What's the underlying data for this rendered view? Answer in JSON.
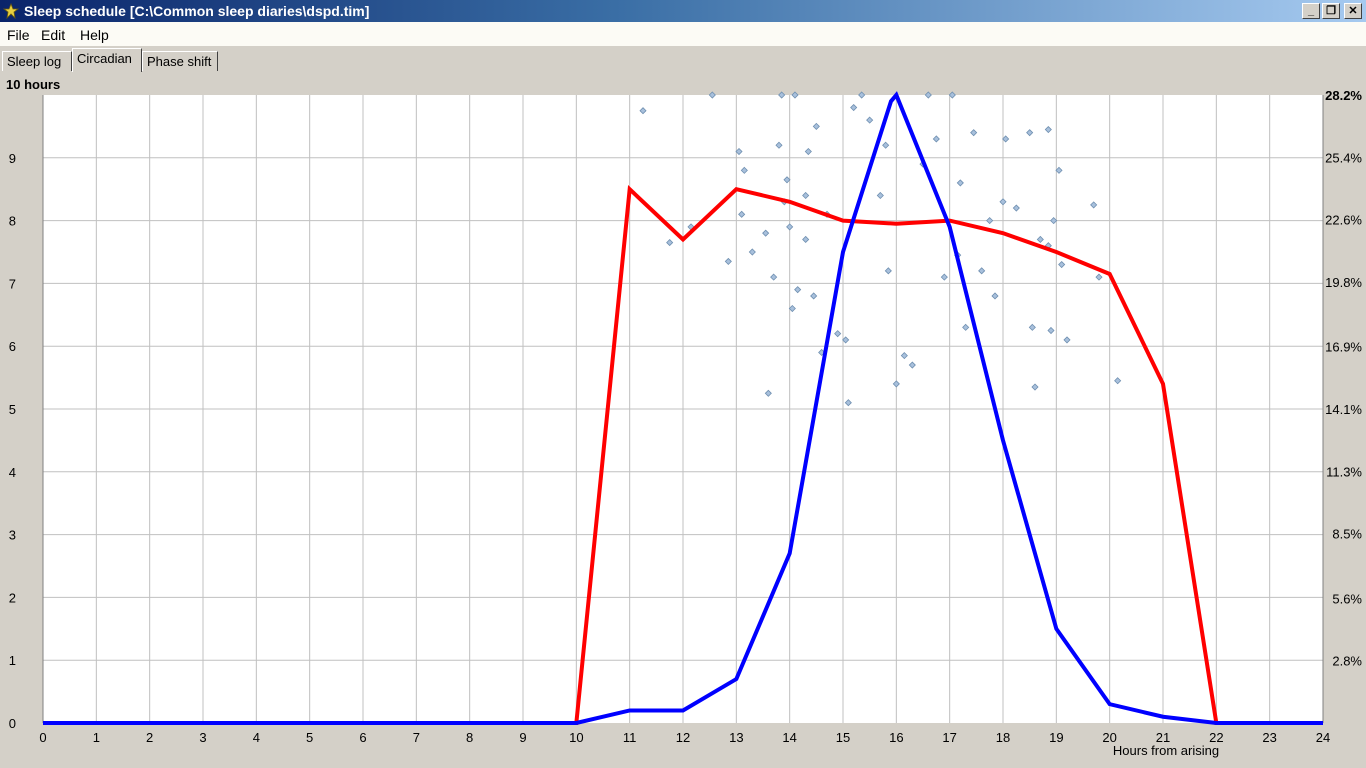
{
  "window": {
    "title": "Sleep schedule [C:\\Common sleep diaries\\dspd.tim]",
    "minimize_symbol": "_",
    "restore_symbol": "❐",
    "close_symbol": "✕"
  },
  "menu": [
    "File",
    "Edit",
    "Help"
  ],
  "tabs": [
    "Sleep log",
    "Circadian",
    "Phase shift"
  ],
  "active_tab": "Circadian",
  "colors": {
    "sleep_length_line": "#ff0000",
    "sleep_onset_distribution_line": "#0000ff",
    "scatter_fill": "#a8c0dc",
    "scatter_stroke": "#6f8fb0",
    "grid": "#c0c0c0"
  },
  "chart_data": {
    "type": "line",
    "title": "10 hours",
    "xlabel": "Hours from arising",
    "xlim": [
      0,
      24
    ],
    "ylim_left": [
      0,
      10
    ],
    "ylim_right_percent": [
      0,
      28.2
    ],
    "x_ticks": [
      "0",
      "1",
      "2",
      "3",
      "4",
      "5",
      "6",
      "7",
      "8",
      "9",
      "10",
      "11",
      "12",
      "13",
      "14",
      "15",
      "16",
      "17",
      "18",
      "19",
      "20",
      "21",
      "22",
      "23",
      "24"
    ],
    "y_ticks_left": [
      "0",
      "1",
      "2",
      "3",
      "4",
      "5",
      "6",
      "7",
      "8",
      "9"
    ],
    "y_ticks_right": [
      "2.8%",
      "5.6%",
      "8.5%",
      "11.3%",
      "14.1%",
      "16.9%",
      "19.8%",
      "22.6%",
      "25.4%",
      "28.2%"
    ],
    "grid": true,
    "series": [
      {
        "color": "red",
        "x": [
          0,
          10,
          11,
          12,
          13,
          14,
          15,
          16,
          17,
          18,
          19,
          20,
          21,
          22,
          24
        ],
        "values": [
          0,
          0,
          8.5,
          7.7,
          8.5,
          8.3,
          8.0,
          7.95,
          8.0,
          7.8,
          7.5,
          7.15,
          5.4,
          0,
          0
        ]
      },
      {
        "color": "blue",
        "x": [
          0,
          10,
          11,
          12,
          13,
          14,
          15,
          15.9,
          16,
          17,
          18,
          19,
          20,
          21,
          22,
          24
        ],
        "values": [
          0,
          0,
          0.2,
          0.2,
          0.7,
          2.7,
          7.5,
          9.9,
          10,
          7.9,
          4.5,
          1.5,
          0.3,
          0.1,
          0,
          0
        ]
      }
    ],
    "scatter_points": [
      [
        11.25,
        9.75
      ],
      [
        12.55,
        10
      ],
      [
        11.75,
        7.65
      ],
      [
        12.15,
        7.9
      ],
      [
        12.85,
        7.35
      ],
      [
        13.05,
        9.1
      ],
      [
        13.15,
        8.8
      ],
      [
        13.3,
        7.5
      ],
      [
        13.55,
        7.8
      ],
      [
        13.6,
        5.25
      ],
      [
        13.7,
        7.1
      ],
      [
        13.8,
        9.2
      ],
      [
        13.9,
        8.3
      ],
      [
        13.95,
        8.65
      ],
      [
        14.05,
        6.6
      ],
      [
        14.15,
        6.9
      ],
      [
        14.3,
        7.7
      ],
      [
        14.35,
        9.1
      ],
      [
        14.45,
        6.8
      ],
      [
        14.6,
        5.9
      ],
      [
        13.85,
        10
      ],
      [
        14.1,
        10
      ],
      [
        14.3,
        8.4
      ],
      [
        14.5,
        9.5
      ],
      [
        14.7,
        8.1
      ],
      [
        14.9,
        6.2
      ],
      [
        15.1,
        5.1
      ],
      [
        15.05,
        6.1
      ],
      [
        15.2,
        9.8
      ],
      [
        15.35,
        10
      ],
      [
        15.5,
        9.6
      ],
      [
        15.7,
        8.4
      ],
      [
        15.85,
        7.2
      ],
      [
        16.0,
        5.4
      ],
      [
        16.15,
        5.85
      ],
      [
        16.3,
        5.7
      ],
      [
        16.5,
        8.9
      ],
      [
        16.6,
        10
      ],
      [
        16.75,
        9.3
      ],
      [
        16.9,
        7.1
      ],
      [
        17.05,
        10
      ],
      [
        17.2,
        8.6
      ],
      [
        17.3,
        6.3
      ],
      [
        17.45,
        9.4
      ],
      [
        17.6,
        7.2
      ],
      [
        17.75,
        8.0
      ],
      [
        17.85,
        6.8
      ],
      [
        18.0,
        8.3
      ],
      [
        18.05,
        9.3
      ],
      [
        18.25,
        8.2
      ],
      [
        18.5,
        9.4
      ],
      [
        18.55,
        6.3
      ],
      [
        18.6,
        5.35
      ],
      [
        18.7,
        7.7
      ],
      [
        18.85,
        9.45
      ],
      [
        18.9,
        6.25
      ],
      [
        18.95,
        8.0
      ],
      [
        19.05,
        8.8
      ],
      [
        19.1,
        7.3
      ],
      [
        19.2,
        6.1
      ],
      [
        19.7,
        8.25
      ],
      [
        19.8,
        7.1
      ],
      [
        20.15,
        5.45
      ],
      [
        18.85,
        7.6
      ],
      [
        17.15,
        7.45
      ],
      [
        15.8,
        9.2
      ],
      [
        14.0,
        7.9
      ],
      [
        13.1,
        8.1
      ]
    ]
  }
}
